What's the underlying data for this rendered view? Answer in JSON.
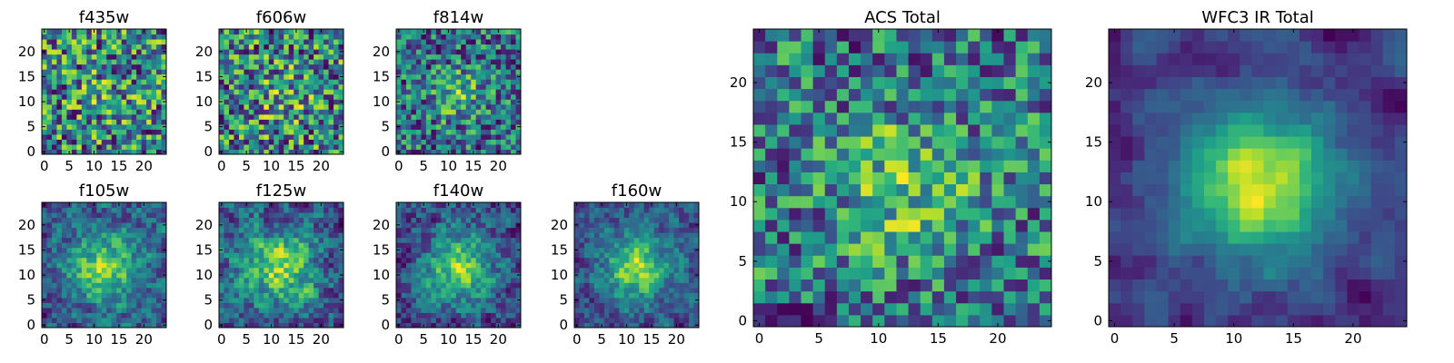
{
  "figure": {
    "description_free": true
  },
  "colors": {
    "viridis": [
      "#440154",
      "#482878",
      "#3e4989",
      "#31688e",
      "#26828e",
      "#1f9e89",
      "#35b779",
      "#6ece58",
      "#b5de2b",
      "#fde725"
    ]
  },
  "chart_data": [
    {
      "type": "heatmap",
      "title": "f435w",
      "grid_size": 25,
      "seed": 11,
      "signal": 0.1,
      "noise": 0.95,
      "sigma": 4,
      "smooth": 0,
      "base": 0.62,
      "xticks": [
        0,
        5,
        10,
        15,
        20
      ],
      "yticks": [
        0,
        5,
        10,
        15,
        20
      ],
      "xlim": [
        0,
        25
      ],
      "ylim": [
        0,
        25
      ],
      "colormap": "viridis"
    },
    {
      "type": "heatmap",
      "title": "f606w",
      "grid_size": 25,
      "seed": 23,
      "signal": 0.15,
      "noise": 0.95,
      "sigma": 4,
      "smooth": 0,
      "base": 0.62,
      "xticks": [
        0,
        5,
        10,
        15,
        20
      ],
      "yticks": [
        0,
        5,
        10,
        15,
        20
      ],
      "xlim": [
        0,
        25
      ],
      "ylim": [
        0,
        25
      ],
      "colormap": "viridis"
    },
    {
      "type": "heatmap",
      "title": "f814w",
      "grid_size": 25,
      "seed": 37,
      "signal": 0.35,
      "noise": 0.9,
      "sigma": 3.5,
      "smooth": 0,
      "base": 0.55,
      "xticks": [
        0,
        5,
        10,
        15,
        20
      ],
      "yticks": [
        0,
        5,
        10,
        15,
        20
      ],
      "xlim": [
        0,
        25
      ],
      "ylim": [
        0,
        25
      ],
      "colormap": "viridis"
    },
    {
      "type": "heatmap",
      "title": "f105w",
      "grid_size": 25,
      "seed": 41,
      "signal": 0.55,
      "noise": 0.75,
      "sigma": 5,
      "smooth": 0.5,
      "base": 0.5,
      "xticks": [
        0,
        5,
        10,
        15,
        20
      ],
      "yticks": [
        0,
        5,
        10,
        15,
        20
      ],
      "xlim": [
        0,
        25
      ],
      "ylim": [
        0,
        25
      ],
      "colormap": "viridis"
    },
    {
      "type": "heatmap",
      "title": "f125w",
      "grid_size": 25,
      "seed": 53,
      "signal": 0.5,
      "noise": 0.8,
      "sigma": 5,
      "smooth": 0.5,
      "base": 0.5,
      "xticks": [
        0,
        5,
        10,
        15,
        20
      ],
      "yticks": [
        0,
        5,
        10,
        15,
        20
      ],
      "xlim": [
        0,
        25
      ],
      "ylim": [
        0,
        25
      ],
      "colormap": "viridis"
    },
    {
      "type": "heatmap",
      "title": "f140w",
      "grid_size": 25,
      "seed": 67,
      "signal": 0.6,
      "noise": 0.8,
      "sigma": 5,
      "smooth": 0.5,
      "base": 0.48,
      "xticks": [
        0,
        5,
        10,
        15,
        20
      ],
      "yticks": [
        0,
        5,
        10,
        15,
        20
      ],
      "xlim": [
        0,
        25
      ],
      "ylim": [
        0,
        25
      ],
      "colormap": "viridis"
    },
    {
      "type": "heatmap",
      "title": "f160w",
      "grid_size": 25,
      "seed": 79,
      "signal": 0.7,
      "noise": 0.75,
      "sigma": 4.5,
      "smooth": 0.5,
      "base": 0.42,
      "xticks": [
        0,
        5,
        10,
        15,
        20
      ],
      "yticks": [
        0,
        5,
        10,
        15,
        20
      ],
      "xlim": [
        0,
        25
      ],
      "ylim": [
        0,
        25
      ],
      "colormap": "viridis"
    },
    {
      "type": "heatmap",
      "title": "ACS Total",
      "grid_size": 25,
      "seed": 97,
      "signal": 0.3,
      "noise": 0.85,
      "sigma": 4,
      "smooth": 0.2,
      "base": 0.6,
      "xticks": [
        0,
        5,
        10,
        15,
        20
      ],
      "yticks": [
        0,
        5,
        10,
        15,
        20
      ],
      "xlim": [
        0,
        25
      ],
      "ylim": [
        0,
        25
      ],
      "colormap": "viridis"
    },
    {
      "type": "heatmap",
      "title": "WFC3 IR Total",
      "grid_size": 25,
      "seed": 113,
      "signal": 0.75,
      "noise": 0.55,
      "sigma": 4.5,
      "smooth": 0.8,
      "base": 0.42,
      "xticks": [
        0,
        5,
        10,
        15,
        20
      ],
      "yticks": [
        0,
        5,
        10,
        15,
        20
      ],
      "xlim": [
        0,
        25
      ],
      "ylim": [
        0,
        25
      ],
      "colormap": "viridis"
    }
  ]
}
